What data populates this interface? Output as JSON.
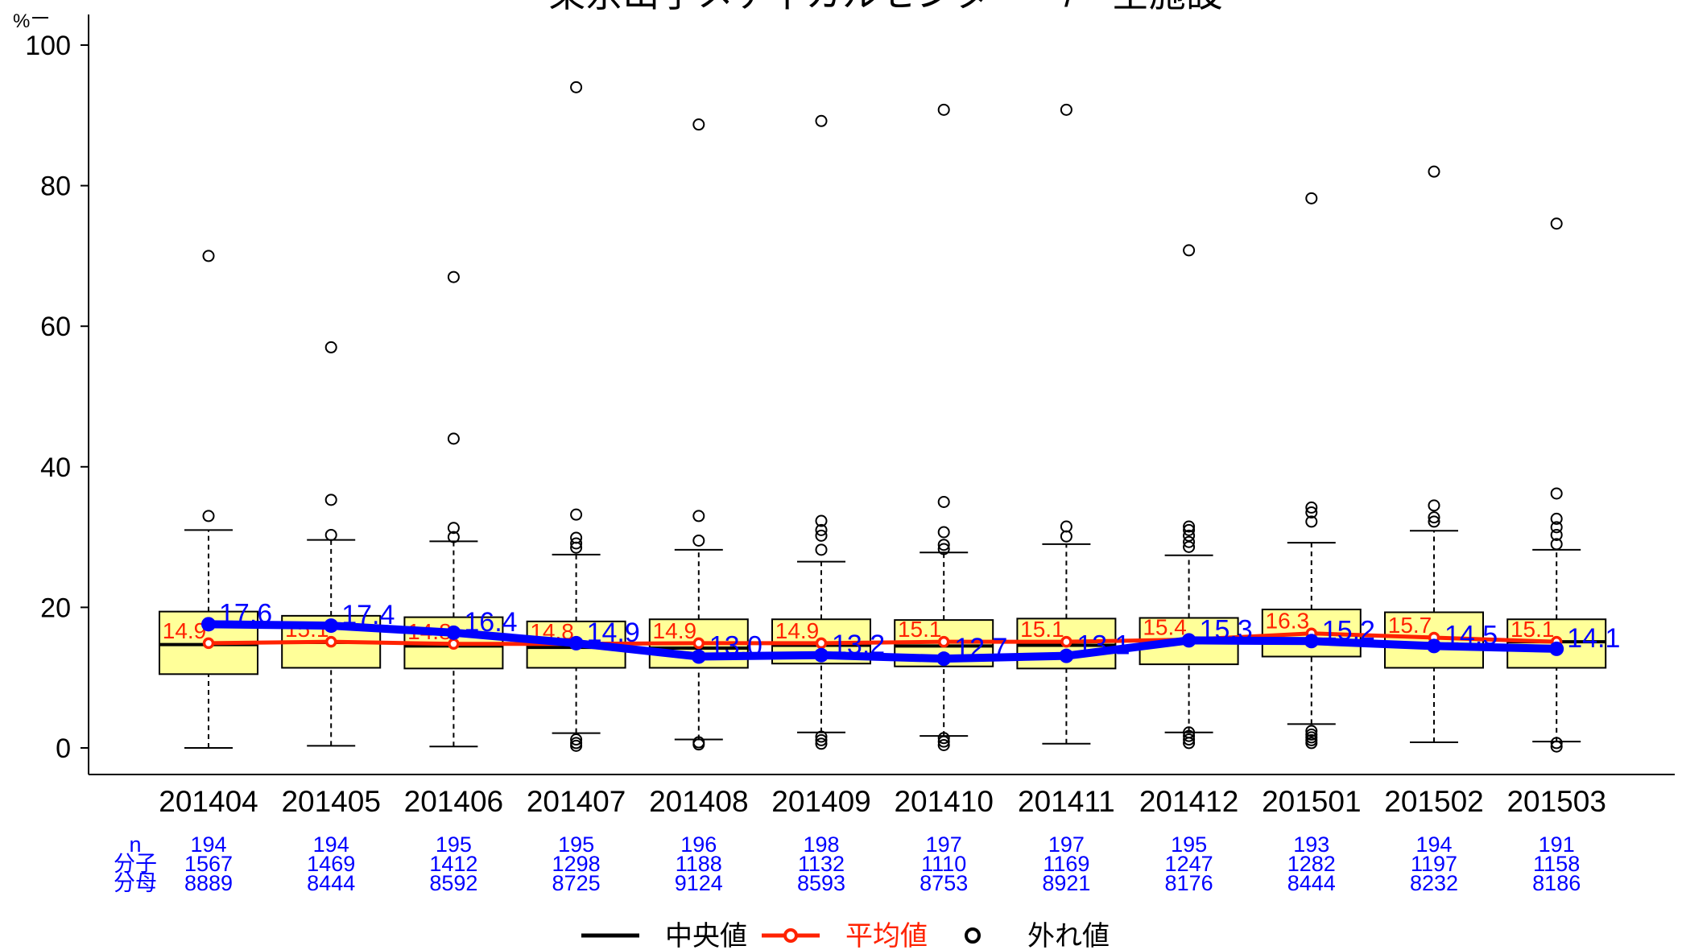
{
  "chart_data": {
    "type": "box",
    "title": "東京山手メディカルセンター　/　全施設",
    "y_unit": "%",
    "ylim": [
      0,
      100
    ],
    "y_ticks": [
      0,
      20,
      40,
      60,
      80,
      100
    ],
    "categories": [
      "201404",
      "201405",
      "201406",
      "201407",
      "201408",
      "201409",
      "201410",
      "201411",
      "201412",
      "201501",
      "201502",
      "201503"
    ],
    "boxes": [
      {
        "low": 0.0,
        "q1": 10.5,
        "median": 14.7,
        "q3": 19.4,
        "high": 31.0,
        "outliers": [
          33.0,
          70.0
        ]
      },
      {
        "low": 0.3,
        "q1": 11.4,
        "median": 15.0,
        "q3": 18.8,
        "high": 29.6,
        "outliers": [
          30.3,
          35.3,
          57.0
        ]
      },
      {
        "low": 0.2,
        "q1": 11.3,
        "median": 14.5,
        "q3": 18.6,
        "high": 29.4,
        "outliers": [
          30.0,
          31.3,
          44.0,
          67.0
        ]
      },
      {
        "low": 2.1,
        "q1": 11.4,
        "median": 14.3,
        "q3": 18.0,
        "high": 27.5,
        "outliers": [
          0.3,
          0.7,
          1.2,
          28.5,
          29.1,
          29.9,
          33.2,
          94.0
        ]
      },
      {
        "low": 1.2,
        "q1": 11.4,
        "median": 14.2,
        "q3": 18.3,
        "high": 28.2,
        "outliers": [
          0.5,
          0.8,
          29.5,
          33.0,
          88.7
        ]
      },
      {
        "low": 2.2,
        "q1": 12.0,
        "median": 14.6,
        "q3": 18.3,
        "high": 26.5,
        "outliers": [
          0.6,
          1.1,
          1.6,
          28.2,
          30.2,
          31.0,
          32.3,
          89.2
        ]
      },
      {
        "low": 1.7,
        "q1": 11.6,
        "median": 14.5,
        "q3": 18.2,
        "high": 27.8,
        "outliers": [
          0.4,
          0.9,
          1.4,
          28.3,
          28.9,
          30.7,
          35.0,
          90.8
        ]
      },
      {
        "low": 0.6,
        "q1": 11.3,
        "median": 14.6,
        "q3": 18.4,
        "high": 29.0,
        "outliers": [
          30.1,
          31.5,
          90.8
        ]
      },
      {
        "low": 2.2,
        "q1": 11.9,
        "median": 15.3,
        "q3": 18.5,
        "high": 27.4,
        "outliers": [
          0.7,
          1.2,
          1.7,
          2.2,
          28.6,
          29.3,
          30.2,
          31.0,
          31.5,
          70.8
        ]
      },
      {
        "low": 3.4,
        "q1": 13.0,
        "median": 15.2,
        "q3": 19.7,
        "high": 29.2,
        "outliers": [
          0.7,
          1.1,
          1.5,
          1.9,
          2.4,
          32.2,
          33.5,
          34.2,
          78.2
        ]
      },
      {
        "low": 0.8,
        "q1": 11.4,
        "median": 14.6,
        "q3": 19.3,
        "high": 30.9,
        "outliers": [
          32.2,
          32.8,
          34.5,
          82.0
        ]
      },
      {
        "low": 0.9,
        "q1": 11.4,
        "median": 15.1,
        "q3": 18.3,
        "high": 28.2,
        "outliers": [
          0.2,
          0.7,
          29.0,
          30.3,
          31.4,
          32.6,
          36.2,
          74.6
        ]
      }
    ],
    "series": [
      {
        "name": "平均値",
        "values": [
          14.9,
          15.1,
          14.8,
          14.8,
          14.9,
          14.9,
          15.1,
          15.1,
          15.4,
          16.3,
          15.7,
          15.1
        ],
        "labels": [
          "14.9",
          "15.1",
          "14.8",
          "14.8",
          "14.9",
          "14.9",
          "15.1",
          "15.1",
          "15.4",
          "16.3",
          "15.7",
          "15.1"
        ]
      },
      {
        "values": [
          17.6,
          17.4,
          16.4,
          14.9,
          13.0,
          13.2,
          12.7,
          13.1,
          15.3,
          15.2,
          14.5,
          14.1
        ],
        "labels": [
          "17.6",
          "17.4",
          "16.4",
          "14.9",
          "13.0",
          "13.2",
          "12.7",
          "13.1",
          "15.3",
          "15.2",
          "14.5",
          "14.1"
        ]
      }
    ],
    "table": {
      "row_labels": [
        "n",
        "分子",
        "分母"
      ],
      "n": [
        "194",
        "194",
        "195",
        "195",
        "196",
        "198",
        "197",
        "197",
        "195",
        "193",
        "194",
        "191"
      ],
      "numerator": [
        "1567",
        "1469",
        "1412",
        "1298",
        "1188",
        "1132",
        "1110",
        "1169",
        "1247",
        "1282",
        "1197",
        "1158"
      ],
      "denominator": [
        "8889",
        "8444",
        "8592",
        "8725",
        "9124",
        "8593",
        "8753",
        "8921",
        "8176",
        "8444",
        "8232",
        "8186"
      ]
    },
    "legend": {
      "position": "bottom",
      "items": [
        {
          "label": "中央値",
          "color": "#000000"
        },
        {
          "label": "平均値",
          "color": "#ff2200"
        },
        {
          "label": "外れ値",
          "color": "#000000"
        }
      ]
    },
    "colors": {
      "box_fill": "#ffff99",
      "mean": "#ff2200",
      "facility": "#0000ff",
      "table": "#0000ff"
    }
  }
}
